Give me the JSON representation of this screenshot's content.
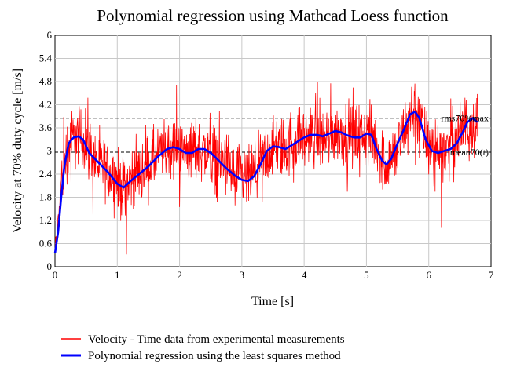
{
  "chart_data": {
    "type": "line",
    "title": "Polynomial regression using Mathcad Loess function",
    "xlabel": "Time [s]",
    "ylabel": "Velocity at 70% duty cycle [m/s]",
    "xlim": [
      0,
      7
    ],
    "ylim": [
      0,
      6
    ],
    "xticks": [
      0,
      1,
      2,
      3,
      4,
      5,
      6,
      7
    ],
    "yticks": [
      0,
      0.6,
      1.2,
      1.8,
      2.4,
      3,
      3.6,
      4.2,
      4.8,
      5.4,
      6
    ],
    "xtick_labels": [
      "0",
      "1",
      "2",
      "3",
      "4",
      "5",
      "6",
      "7"
    ],
    "ytick_labels": [
      "0",
      "0.6",
      "1.2",
      "1.8",
      "2.4",
      "3",
      "3.6",
      "4.2",
      "4.8",
      "5.4",
      "6"
    ],
    "grid": true,
    "reference_lines": [
      {
        "label": "rms70%max",
        "y": 3.85,
        "style": "dashed"
      },
      {
        "label": "mean70(t)",
        "y": 2.97,
        "style": "dashed"
      }
    ],
    "series": [
      {
        "name": "Velocity - Time data from experimental measurements",
        "color": "#ff0000",
        "kind": "noisy-measurement",
        "x_range": [
          0,
          6.78
        ],
        "envelope_center": [
          [
            0,
            0.4
          ],
          [
            0.05,
            1.1
          ],
          [
            0.1,
            2.2
          ],
          [
            0.2,
            3.1
          ],
          [
            0.3,
            3.3
          ],
          [
            0.4,
            3.4
          ],
          [
            0.5,
            3.2
          ],
          [
            0.7,
            2.6
          ],
          [
            0.9,
            2.4
          ],
          [
            1.1,
            2.05
          ],
          [
            1.3,
            2.4
          ],
          [
            1.5,
            2.6
          ],
          [
            1.7,
            3.0
          ],
          [
            1.9,
            3.1
          ],
          [
            2.1,
            2.95
          ],
          [
            2.3,
            3.05
          ],
          [
            2.5,
            2.95
          ],
          [
            2.7,
            2.65
          ],
          [
            2.9,
            2.35
          ],
          [
            3.1,
            2.25
          ],
          [
            3.3,
            2.6
          ],
          [
            3.5,
            3.1
          ],
          [
            3.7,
            3.05
          ],
          [
            3.9,
            3.3
          ],
          [
            4.1,
            3.4
          ],
          [
            4.3,
            3.35
          ],
          [
            4.5,
            3.5
          ],
          [
            4.7,
            3.4
          ],
          [
            4.9,
            3.4
          ],
          [
            5.1,
            3.35
          ],
          [
            5.3,
            2.65
          ],
          [
            5.5,
            3.0
          ],
          [
            5.7,
            3.9
          ],
          [
            5.8,
            4.0
          ],
          [
            6.0,
            3.1
          ],
          [
            6.2,
            3.0
          ],
          [
            6.4,
            3.25
          ],
          [
            6.6,
            3.7
          ],
          [
            6.78,
            3.75
          ]
        ],
        "envelope_amplitude": 0.85
      },
      {
        "name": "Polynomial regression using the least squares method",
        "color": "#0000ff",
        "points": [
          [
            0,
            0.35
          ],
          [
            0.05,
            0.9
          ],
          [
            0.1,
            1.8
          ],
          [
            0.15,
            2.6
          ],
          [
            0.22,
            3.2
          ],
          [
            0.3,
            3.35
          ],
          [
            0.38,
            3.38
          ],
          [
            0.45,
            3.3
          ],
          [
            0.55,
            2.95
          ],
          [
            0.7,
            2.7
          ],
          [
            0.85,
            2.45
          ],
          [
            1.0,
            2.15
          ],
          [
            1.1,
            2.05
          ],
          [
            1.2,
            2.2
          ],
          [
            1.35,
            2.4
          ],
          [
            1.5,
            2.6
          ],
          [
            1.65,
            2.85
          ],
          [
            1.8,
            3.05
          ],
          [
            1.9,
            3.1
          ],
          [
            2.0,
            3.05
          ],
          [
            2.1,
            2.95
          ],
          [
            2.2,
            2.95
          ],
          [
            2.3,
            3.05
          ],
          [
            2.4,
            3.05
          ],
          [
            2.5,
            2.95
          ],
          [
            2.6,
            2.8
          ],
          [
            2.75,
            2.55
          ],
          [
            2.9,
            2.35
          ],
          [
            3.0,
            2.25
          ],
          [
            3.1,
            2.22
          ],
          [
            3.2,
            2.35
          ],
          [
            3.3,
            2.65
          ],
          [
            3.4,
            3.0
          ],
          [
            3.5,
            3.12
          ],
          [
            3.6,
            3.1
          ],
          [
            3.7,
            3.05
          ],
          [
            3.8,
            3.15
          ],
          [
            3.9,
            3.25
          ],
          [
            4.0,
            3.35
          ],
          [
            4.1,
            3.42
          ],
          [
            4.2,
            3.42
          ],
          [
            4.3,
            3.38
          ],
          [
            4.4,
            3.45
          ],
          [
            4.5,
            3.52
          ],
          [
            4.6,
            3.48
          ],
          [
            4.7,
            3.4
          ],
          [
            4.8,
            3.35
          ],
          [
            4.9,
            3.35
          ],
          [
            5.0,
            3.45
          ],
          [
            5.08,
            3.42
          ],
          [
            5.15,
            3.1
          ],
          [
            5.25,
            2.75
          ],
          [
            5.32,
            2.65
          ],
          [
            5.4,
            2.8
          ],
          [
            5.5,
            3.2
          ],
          [
            5.6,
            3.55
          ],
          [
            5.7,
            3.95
          ],
          [
            5.78,
            4.02
          ],
          [
            5.85,
            3.85
          ],
          [
            5.95,
            3.3
          ],
          [
            6.05,
            3.0
          ],
          [
            6.15,
            2.95
          ],
          [
            6.25,
            3.0
          ],
          [
            6.35,
            3.05
          ],
          [
            6.45,
            3.2
          ],
          [
            6.55,
            3.5
          ],
          [
            6.62,
            3.75
          ],
          [
            6.7,
            3.85
          ],
          [
            6.78,
            3.75
          ]
        ]
      }
    ]
  }
}
